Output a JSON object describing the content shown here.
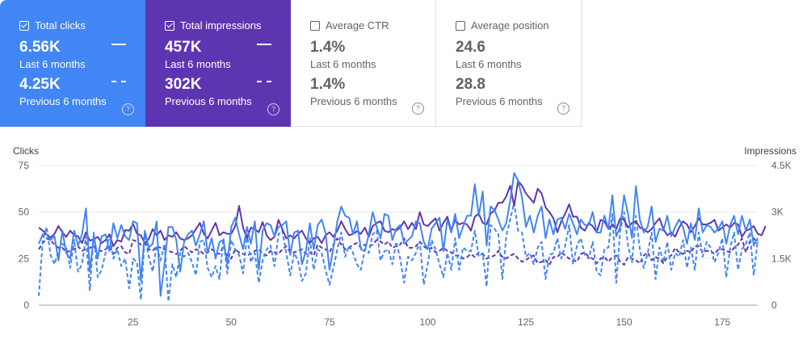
{
  "cards": [
    {
      "id": "clicks",
      "label": "Total clicks",
      "value": "6.56K",
      "period": "Last 6 months",
      "prev_value": "4.25K",
      "prev_period": "Previous 6 months",
      "checked": true,
      "color": "#4285f4"
    },
    {
      "id": "impr",
      "label": "Total impressions",
      "value": "457K",
      "period": "Last 6 months",
      "prev_value": "302K",
      "prev_period": "Previous 6 months",
      "checked": true,
      "color": "#5e35b1"
    },
    {
      "id": "ctr",
      "label": "Average CTR",
      "value": "1.4%",
      "period": "Last 6 months",
      "prev_value": "1.4%",
      "prev_period": "Previous 6 months",
      "checked": false
    },
    {
      "id": "pos",
      "label": "Average position",
      "value": "24.6",
      "period": "Last 6 months",
      "prev_value": "28.8",
      "prev_period": "Previous 6 months",
      "checked": false
    }
  ],
  "help_icon": "help-circle-icon",
  "chart_data": {
    "type": "line",
    "left_axis_label": "Clicks",
    "right_axis_label": "Impressions",
    "left_ticks": [
      "75",
      "50",
      "25",
      "0"
    ],
    "right_ticks": [
      "4.5K",
      "3K",
      "1.5K",
      "0"
    ],
    "x_ticks": [
      "25",
      "50",
      "75",
      "100",
      "125",
      "150",
      "175"
    ],
    "x_range": [
      1,
      184
    ],
    "left_range": [
      0,
      75
    ],
    "right_range": [
      0,
      4500
    ],
    "series": [
      {
        "axis": "left",
        "style": "solid",
        "color": "#4285f4",
        "values": [
          33,
          38,
          38,
          35,
          37,
          24,
          40,
          28,
          25,
          40,
          32,
          38,
          52,
          18,
          38,
          25,
          37,
          38,
          29,
          44,
          36,
          43,
          37,
          35,
          45,
          44,
          13,
          40,
          31,
          33,
          45,
          5,
          22,
          42,
          42,
          35,
          18,
          34,
          38,
          40,
          32,
          38,
          45,
          28,
          36,
          25,
          34,
          35,
          22,
          42,
          47,
          38,
          30,
          42,
          33,
          45,
          19,
          40,
          44,
          43,
          37,
          42,
          43,
          45,
          27,
          39,
          40,
          22,
          29,
          44,
          30,
          43,
          46,
          39,
          19,
          31,
          45,
          53,
          48,
          47,
          38,
          45,
          30,
          29,
          38,
          50,
          42,
          36,
          49,
          48,
          35,
          41,
          43,
          33,
          35,
          37,
          45,
          44,
          34,
          30,
          41,
          44,
          47,
          29,
          46,
          39,
          49,
          36,
          42,
          48,
          48,
          65,
          48,
          61,
          32,
          53,
          51,
          46,
          40,
          44,
          56,
          71,
          67,
          58,
          42,
          48,
          39,
          48,
          53,
          36,
          46,
          38,
          46,
          47,
          41,
          49,
          44,
          38,
          46,
          43,
          43,
          50,
          39,
          39,
          48,
          41,
          59,
          37,
          42,
          59,
          49,
          36,
          64,
          46,
          39,
          42,
          53,
          34,
          41,
          40,
          48,
          37,
          42,
          46,
          42,
          33,
          44,
          35,
          52,
          39,
          43,
          42,
          39,
          41,
          45,
          33,
          43,
          48,
          38,
          48,
          40,
          46,
          32,
          36
        ]
      },
      {
        "axis": "left",
        "style": "dashed",
        "color": "#4285f4",
        "values": [
          5,
          35,
          42,
          27,
          22,
          29,
          33,
          31,
          20,
          35,
          18,
          22,
          37,
          8,
          39,
          15,
          19,
          28,
          38,
          25,
          30,
          21,
          25,
          9,
          25,
          23,
          3,
          38,
          26,
          18,
          32,
          24,
          33,
          2,
          22,
          15,
          28,
          26,
          28,
          23,
          16,
          34,
          35,
          20,
          15,
          21,
          14,
          36,
          17,
          35,
          30,
          27,
          17,
          38,
          23,
          28,
          12,
          24,
          30,
          32,
          21,
          38,
          40,
          28,
          16,
          28,
          24,
          13,
          17,
          36,
          19,
          30,
          28,
          19,
          11,
          20,
          30,
          39,
          26,
          32,
          28,
          22,
          19,
          30,
          28,
          38,
          40,
          24,
          29,
          30,
          22,
          34,
          25,
          12,
          26,
          24,
          28,
          34,
          11,
          22,
          35,
          30,
          22,
          15,
          28,
          19,
          36,
          19,
          31,
          29,
          29,
          40,
          26,
          28,
          10,
          43,
          41,
          38,
          14,
          37,
          46,
          55,
          40,
          39,
          26,
          28,
          22,
          31,
          34,
          14,
          27,
          28,
          36,
          25,
          32,
          43,
          22,
          32,
          36,
          27,
          25,
          34,
          18,
          16,
          30,
          31,
          49,
          12,
          40,
          50,
          32,
          23,
          48,
          30,
          20,
          28,
          39,
          14,
          31,
          23,
          34,
          19,
          28,
          26,
          35,
          20,
          31,
          19,
          39,
          26,
          34,
          31,
          23,
          28,
          36,
          15,
          31,
          39,
          19,
          30,
          33,
          39,
          16,
          35
        ]
      },
      {
        "axis": "right",
        "style": "solid",
        "color": "#5e35b1",
        "values": [
          2500,
          2400,
          2280,
          2180,
          2300,
          2550,
          2350,
          2200,
          2400,
          2250,
          2220,
          2000,
          2350,
          2080,
          2120,
          2200,
          2000,
          2100,
          2280,
          1900,
          2100,
          2050,
          2420,
          2400,
          2620,
          2300,
          2250,
          2000,
          2130,
          2450,
          2250,
          2400,
          2100,
          2250,
          2200,
          2350,
          2150,
          2100,
          2150,
          2250,
          2450,
          2650,
          2300,
          2150,
          2400,
          2650,
          2250,
          2350,
          2300,
          2300,
          2550,
          3200,
          2500,
          2150,
          2500,
          2450,
          2350,
          2680,
          2250,
          2100,
          2200,
          2750,
          2450,
          2150,
          2250,
          2150,
          2300,
          2400,
          2150,
          2000,
          2150,
          2200,
          2000,
          2250,
          2350,
          2200,
          2400,
          2700,
          2450,
          2250,
          2300,
          2380,
          2300,
          2500,
          2200,
          2550,
          2650,
          2700,
          2400,
          2350,
          2450,
          2400,
          2500,
          2700,
          2450,
          2650,
          2450,
          3000,
          2600,
          2550,
          2680,
          2800,
          2400,
          2650,
          2850,
          2400,
          2750,
          2600,
          2650,
          2600,
          2400,
          2850,
          2950,
          2650,
          2600,
          2950,
          3050,
          3300,
          3300,
          3500,
          3850,
          3200,
          4000,
          3850,
          3600,
          3450,
          3300,
          3750,
          3600,
          3150,
          3000,
          2800,
          2350,
          2700,
          2950,
          3250,
          2850,
          2850,
          2500,
          2400,
          2650,
          2550,
          2350,
          2750,
          2700,
          2450,
          2600,
          2450,
          2800,
          2750,
          2500,
          2650,
          2700,
          2500,
          2450,
          2350,
          2450,
          2650,
          2800,
          2450,
          2250,
          2350,
          2200,
          2500,
          2700,
          2600,
          2350,
          2550,
          2800,
          2600,
          2600,
          2650,
          2750,
          2400,
          2500,
          2600,
          2500,
          2650,
          2600,
          2200,
          2400,
          2450,
          2550,
          2300,
          2250,
          2550
        ]
      },
      {
        "axis": "right",
        "style": "dashed",
        "color": "#5e35b1",
        "values": [
          1800,
          2000,
          2150,
          2100,
          1950,
          1850,
          1850,
          1700,
          1750,
          1800,
          1900,
          1750,
          1800,
          1850,
          1900,
          1750,
          1750,
          1800,
          1900,
          1650,
          1850,
          1900,
          1700,
          1650,
          2100,
          2050,
          1950,
          2000,
          1800,
          1750,
          1900,
          1850,
          1800,
          1750,
          1700,
          1650,
          1750,
          1900,
          1800,
          1700,
          1800,
          1750,
          1650,
          1700,
          1800,
          1700,
          1650,
          1900,
          1600,
          1500,
          1800,
          1700,
          1650,
          1600,
          1650,
          1750,
          1800,
          1650,
          1600,
          1750,
          1700,
          1650,
          1800,
          1900,
          1700,
          1700,
          1750,
          1800,
          1650,
          1700,
          1600,
          1950,
          1850,
          1800,
          1700,
          1950,
          2150,
          1950,
          1800,
          1850,
          1950,
          2000,
          1850,
          1950,
          1900,
          1950,
          2100,
          2050,
          1950,
          2050,
          1850,
          1900,
          1950,
          2150,
          1850,
          1850,
          1900,
          2050,
          1900,
          1800,
          1850,
          1700,
          1750,
          1850,
          1750,
          1700,
          1600,
          1600,
          1500,
          1550,
          1650,
          1550,
          1700,
          1650,
          1500,
          1550,
          1600,
          1750,
          1550,
          1500,
          1600,
          1650,
          1500,
          1400,
          1450,
          1550,
          1600,
          1350,
          1400,
          1450,
          1300,
          1550,
          1550,
          1700,
          1600,
          1500,
          1450,
          1400,
          1650,
          1700,
          1550,
          1500,
          1350,
          1500,
          1550,
          1400,
          1550,
          1600,
          1400,
          1300,
          1550,
          1500,
          1450,
          1350,
          1600,
          1700,
          1450,
          1550,
          1500,
          1350,
          1550,
          1600,
          1850,
          1700,
          1650,
          1750,
          1700,
          1900,
          1900,
          1700,
          1750,
          1750,
          1650,
          1800,
          1800,
          1750,
          1700,
          1850,
          1950,
          2150,
          1700,
          2050,
          2150,
          2000
        ]
      }
    ]
  }
}
